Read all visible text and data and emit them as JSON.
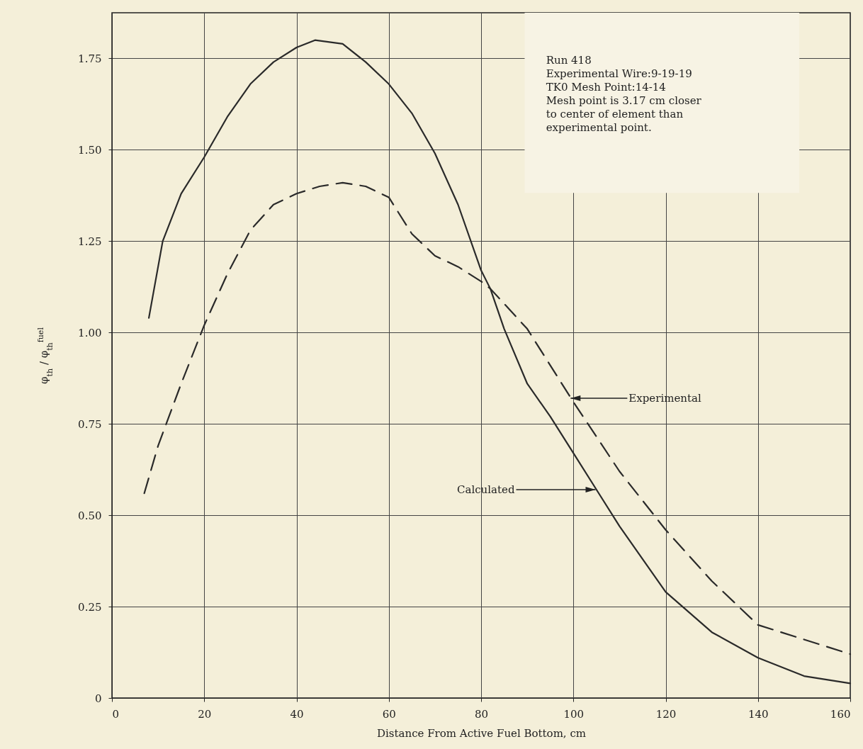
{
  "chart_data": {
    "type": "line",
    "xlabel": "Distance From Active Fuel Bottom, cm",
    "ylabel": "φ$_{th}$ / φ$_{th}$$^{fuel}$",
    "xlim": [
      0,
      160
    ],
    "xticks": [
      0,
      20,
      40,
      60,
      80,
      100,
      120,
      140,
      160
    ],
    "ylim": [
      0,
      1.875
    ],
    "yticks": [
      0,
      0.25,
      {
        "value": 0.5,
        "label": "0.50"
      },
      0.75,
      {
        "value": 1,
        "label": "1.00"
      },
      1.25,
      {
        "value": 1.5,
        "label": "1.50"
      },
      1.75
    ],
    "grid": true,
    "series": [
      {
        "color": "#2a2a2a",
        "line_style": "solid",
        "x": [
          8,
          11,
          15,
          20,
          25,
          30,
          35,
          40,
          44,
          50,
          55,
          60,
          65,
          70,
          75,
          80,
          82,
          85,
          90,
          95,
          100,
          105,
          110,
          120,
          130,
          140,
          150,
          160
        ],
        "values": [
          1.04,
          1.25,
          1.38,
          1.48,
          1.59,
          1.68,
          1.74,
          1.78,
          1.8,
          1.79,
          1.74,
          1.68,
          1.6,
          1.49,
          1.35,
          1.17,
          1.12,
          1.01,
          0.86,
          0.77,
          0.67,
          0.57,
          0.47,
          0.29,
          0.18,
          0.11,
          0.06,
          0.04
        ]
      },
      {
        "color": "#2a2a2a",
        "line_style": "dashed",
        "x": [
          7,
          10,
          15,
          20,
          25,
          30,
          35,
          40,
          45,
          50,
          55,
          60,
          65,
          70,
          75,
          80,
          82,
          90,
          100,
          110,
          120,
          130,
          140,
          150,
          160
        ],
        "values": [
          0.56,
          0.69,
          0.86,
          1.02,
          1.16,
          1.28,
          1.35,
          1.38,
          1.4,
          1.41,
          1.4,
          1.37,
          1.27,
          1.21,
          1.18,
          1.14,
          1.12,
          1.01,
          0.81,
          0.62,
          0.46,
          0.32,
          0.2,
          0.16,
          0.12
        ]
      }
    ],
    "annotations": [
      "Run 418\nExperimental Wire:9-19-19\nTK0 Mesh Point:14-14\nMesh point is 3.17 cm closer\nto center of element than\nexperimental point.",
      {
        "text": "Experimental",
        "x": 99.4,
        "y": 0.82
      },
      {
        "text": "Calculated",
        "x": 104.8,
        "y": 0.57
      }
    ]
  }
}
